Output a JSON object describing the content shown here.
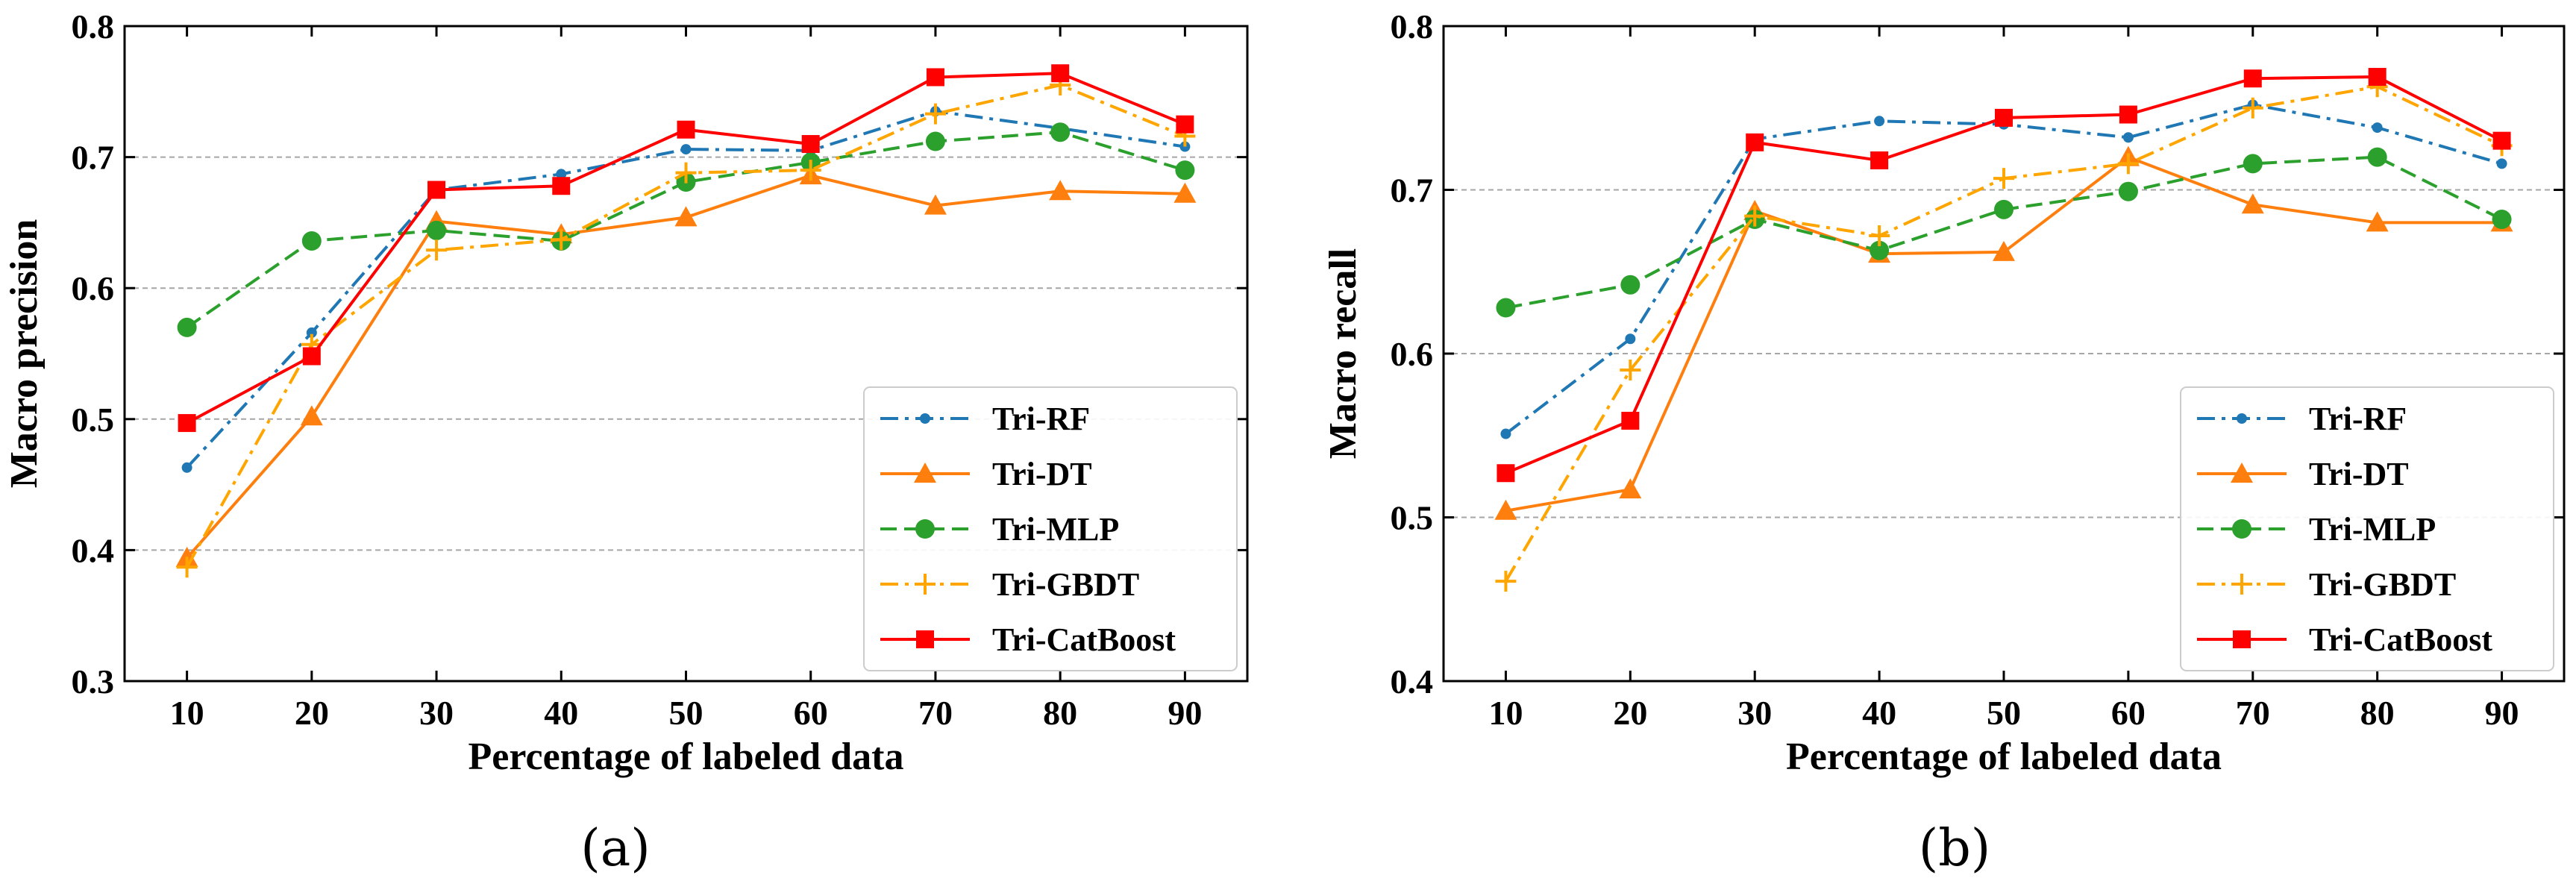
{
  "chart_data": [
    {
      "type": "line",
      "panel": "a",
      "caption": "(a)",
      "title": "",
      "xlabel": "Percentage of labeled data",
      "ylabel": "Macro precision",
      "x": [
        10,
        20,
        30,
        40,
        50,
        60,
        70,
        80,
        90
      ],
      "x_tick_labels": [
        "10",
        "20",
        "30",
        "40",
        "50",
        "60",
        "70",
        "80",
        "90"
      ],
      "xlim": [
        5,
        95
      ],
      "ylim": [
        0.3,
        0.8
      ],
      "y_ticks": [
        0.3,
        0.4,
        0.5,
        0.6,
        0.7,
        0.8
      ],
      "y_tick_labels": [
        "0.3",
        "0.4",
        "0.5",
        "0.6",
        "0.7",
        "0.8"
      ],
      "grid": "horizontal dashed",
      "legend_position": "bottom-right",
      "series": [
        {
          "name": "Tri-RF",
          "color": "#1f77b4",
          "marker": "dot",
          "linestyle": "dashdot",
          "values": [
            0.463,
            0.566,
            0.675,
            0.687,
            0.706,
            0.705,
            0.735,
            0.722,
            0.708
          ]
        },
        {
          "name": "Tri-DT",
          "color": "#ff7f0e",
          "marker": "triangle",
          "linestyle": "solid",
          "values": [
            0.394,
            0.502,
            0.651,
            0.641,
            0.654,
            0.686,
            0.663,
            0.674,
            0.672
          ]
        },
        {
          "name": "Tri-MLP",
          "color": "#2ca02c",
          "marker": "circle",
          "linestyle": "dashed",
          "values": [
            0.57,
            0.636,
            0.644,
            0.636,
            0.681,
            0.696,
            0.712,
            0.719,
            0.69
          ]
        },
        {
          "name": "Tri-GBDT",
          "color": "#ffa500",
          "marker": "plus",
          "linestyle": "dashdot",
          "values": [
            0.387,
            0.557,
            0.629,
            0.637,
            0.688,
            0.69,
            0.733,
            0.755,
            0.716
          ]
        },
        {
          "name": "Tri-CatBoost",
          "color": "#ff0000",
          "marker": "square",
          "linestyle": "solid",
          "values": [
            0.497,
            0.548,
            0.675,
            0.678,
            0.721,
            0.71,
            0.761,
            0.764,
            0.725
          ]
        }
      ]
    },
    {
      "type": "line",
      "panel": "b",
      "caption": "(b)",
      "title": "",
      "xlabel": "Percentage of labeled data",
      "ylabel": "Macro recall",
      "x": [
        10,
        20,
        30,
        40,
        50,
        60,
        70,
        80,
        90
      ],
      "x_tick_labels": [
        "10",
        "20",
        "30",
        "40",
        "50",
        "60",
        "70",
        "80",
        "90"
      ],
      "xlim": [
        5,
        95
      ],
      "ylim": [
        0.4,
        0.8
      ],
      "y_ticks": [
        0.4,
        0.5,
        0.6,
        0.7,
        0.8
      ],
      "y_tick_labels": [
        "0.4",
        "0.5",
        "0.6",
        "0.7",
        "0.8"
      ],
      "grid": "horizontal dashed",
      "legend_position": "bottom-right",
      "series": [
        {
          "name": "Tri-RF",
          "color": "#1f77b4",
          "marker": "dot",
          "linestyle": "dashdot",
          "values": [
            0.551,
            0.609,
            0.731,
            0.742,
            0.74,
            0.732,
            0.752,
            0.738,
            0.716
          ]
        },
        {
          "name": "Tri-DT",
          "color": "#ff7f0e",
          "marker": "triangle",
          "linestyle": "solid",
          "values": [
            0.504,
            0.517,
            0.687,
            0.661,
            0.662,
            0.72,
            0.691,
            0.68,
            0.68
          ]
        },
        {
          "name": "Tri-MLP",
          "color": "#2ca02c",
          "marker": "circle",
          "linestyle": "dashed",
          "values": [
            0.628,
            0.642,
            0.682,
            0.663,
            0.688,
            0.699,
            0.716,
            0.72,
            0.682
          ]
        },
        {
          "name": "Tri-GBDT",
          "color": "#ffa500",
          "marker": "plus",
          "linestyle": "dashdot",
          "values": [
            0.461,
            0.59,
            0.684,
            0.672,
            0.707,
            0.716,
            0.75,
            0.763,
            0.727
          ]
        },
        {
          "name": "Tri-CatBoost",
          "color": "#ff0000",
          "marker": "square",
          "linestyle": "solid",
          "values": [
            0.527,
            0.559,
            0.729,
            0.718,
            0.744,
            0.746,
            0.768,
            0.769,
            0.73
          ]
        }
      ]
    }
  ]
}
